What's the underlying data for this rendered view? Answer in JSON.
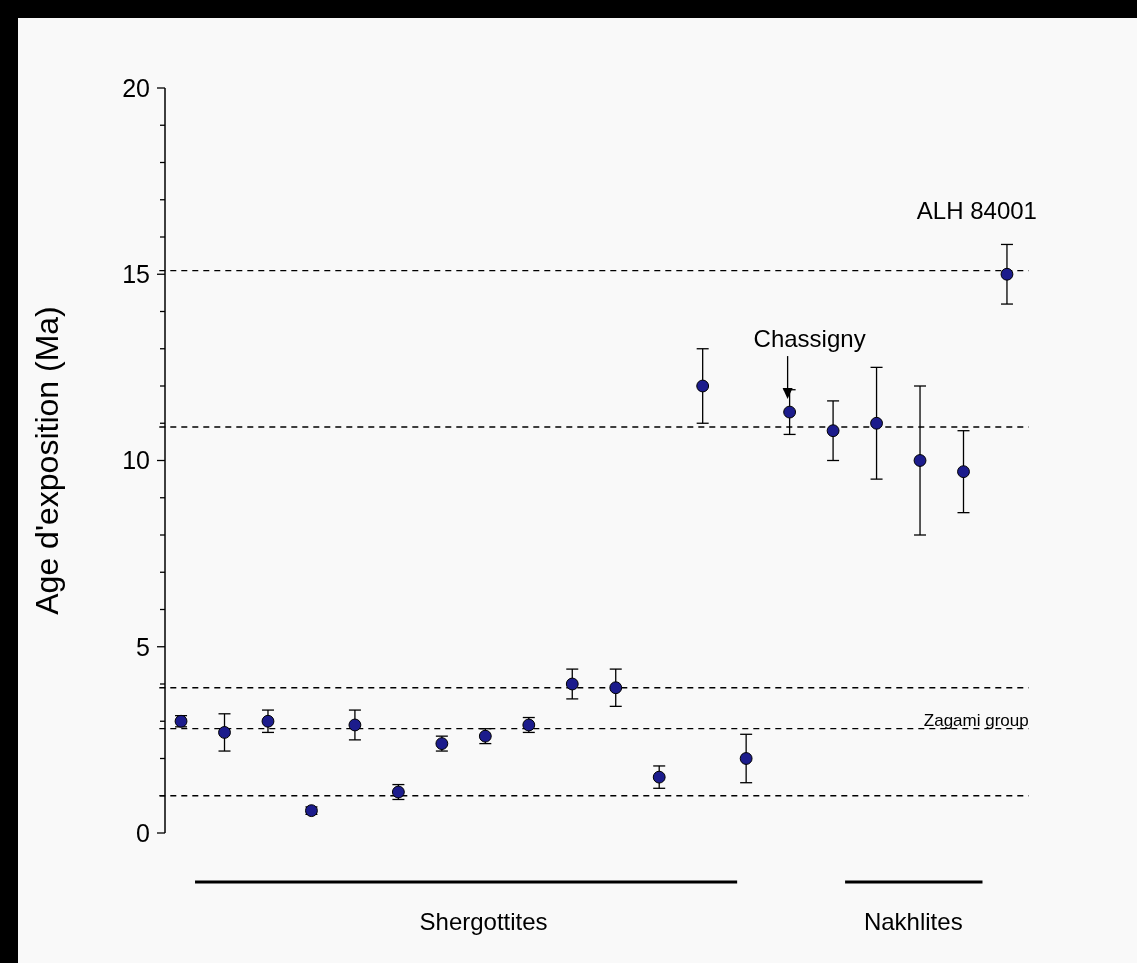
{
  "chart_data": {
    "type": "scatter",
    "ylabel": "Age d'exposition (Ma)",
    "categories": [
      null,
      null,
      null,
      null,
      null,
      null,
      null,
      null,
      null,
      null,
      null,
      null,
      null,
      null,
      null,
      null,
      null,
      null,
      null,
      null
    ],
    "values": [
      3.0,
      2.7,
      3.0,
      0.6,
      2.9,
      1.1,
      2.4,
      2.6,
      2.9,
      4.0,
      3.9,
      1.5,
      12.0,
      2.0,
      11.3,
      10.8,
      11.0,
      10.0,
      9.7,
      15.0
    ],
    "errors": [
      [
        2.85,
        3.15
      ],
      [
        2.2,
        3.2
      ],
      [
        2.7,
        3.3
      ],
      [
        0.5,
        0.7
      ],
      [
        2.5,
        3.3
      ],
      [
        0.9,
        1.3
      ],
      [
        2.2,
        2.6
      ],
      [
        2.4,
        2.8
      ],
      [
        2.7,
        3.1
      ],
      [
        3.6,
        4.4
      ],
      [
        3.4,
        4.4
      ],
      [
        1.2,
        1.8
      ],
      [
        11.0,
        13.0
      ],
      [
        1.35,
        2.65
      ],
      [
        10.7,
        11.9
      ],
      [
        10.0,
        11.6
      ],
      [
        9.5,
        12.5
      ],
      [
        8.0,
        12.0
      ],
      [
        8.6,
        10.8
      ],
      [
        14.2,
        15.8
      ]
    ],
    "color": "#1c1c8c",
    "marker": "circle",
    "ylim": [
      0,
      20
    ],
    "yticks": [
      0,
      {
        "value": 1,
        "label": null
      },
      {
        "value": 2,
        "label": null
      },
      {
        "value": 3,
        "label": null
      },
      {
        "value": 4,
        "label": null
      },
      5,
      {
        "value": 6,
        "label": null
      },
      {
        "value": 7,
        "label": null
      },
      {
        "value": 8,
        "label": null
      },
      {
        "value": 9,
        "label": null
      },
      10,
      {
        "value": 11,
        "label": null
      },
      {
        "value": 12,
        "label": null
      },
      {
        "value": 13,
        "label": null
      },
      {
        "value": 14,
        "label": null
      },
      15,
      {
        "value": 16,
        "label": null
      },
      {
        "value": 17,
        "label": null
      },
      {
        "value": 18,
        "label": null
      },
      {
        "value": 19,
        "label": null
      },
      20
    ],
    "tick_labels": "y",
    "grid": false,
    "ref_lines": [
      {
        "axis": "y",
        "value": 15.1,
        "label": null,
        "line_style": "dashed"
      },
      {
        "axis": "y",
        "value": 10.9,
        "label": null,
        "line_style": "dashed"
      },
      {
        "axis": "y",
        "value": 3.9,
        "label": null,
        "line_style": "dashed"
      },
      {
        "axis": "y",
        "value": 2.8,
        "label": "Zagami group",
        "line_style": "dashed"
      },
      {
        "axis": "y",
        "value": 1.0,
        "label": null,
        "line_style": "dashed"
      }
    ],
    "annotations": [
      "ALH 84001",
      "Chassigny",
      "Shergottites",
      "Nakhlites"
    ]
  }
}
